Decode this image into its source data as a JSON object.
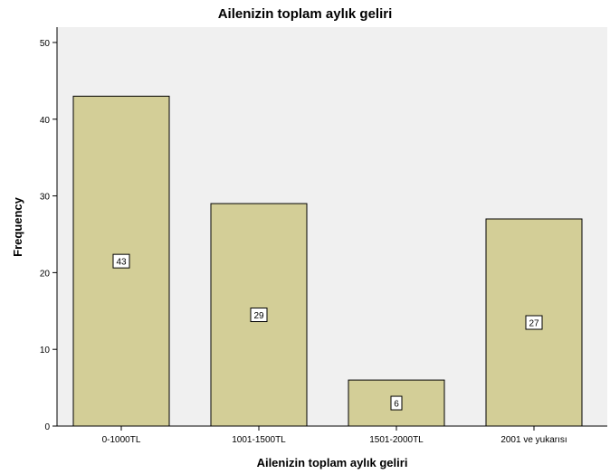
{
  "chart_data": {
    "type": "bar",
    "title": "Ailenizin toplam aylık geliri",
    "xlabel": "Ailenizin toplam aylık geliri",
    "ylabel": "Frequency",
    "categories": [
      "0-1000TL",
      "1001-1500TL",
      "1501-2000TL",
      "2001 ve yukarısı"
    ],
    "values": [
      43,
      29,
      6,
      27
    ],
    "data_labels": [
      "43",
      "29",
      "6",
      "27"
    ],
    "ylim": [
      0,
      52
    ],
    "yticks": [
      0,
      10,
      20,
      30,
      40,
      50
    ],
    "ytick_labels": [
      "0",
      "10",
      "20",
      "30",
      "40",
      "50"
    ],
    "grid": false,
    "legend": "none",
    "colors": {
      "bar_fill": "#d3ce97",
      "bar_stroke": "#000000",
      "plot_background": "#f0f0f0"
    }
  }
}
